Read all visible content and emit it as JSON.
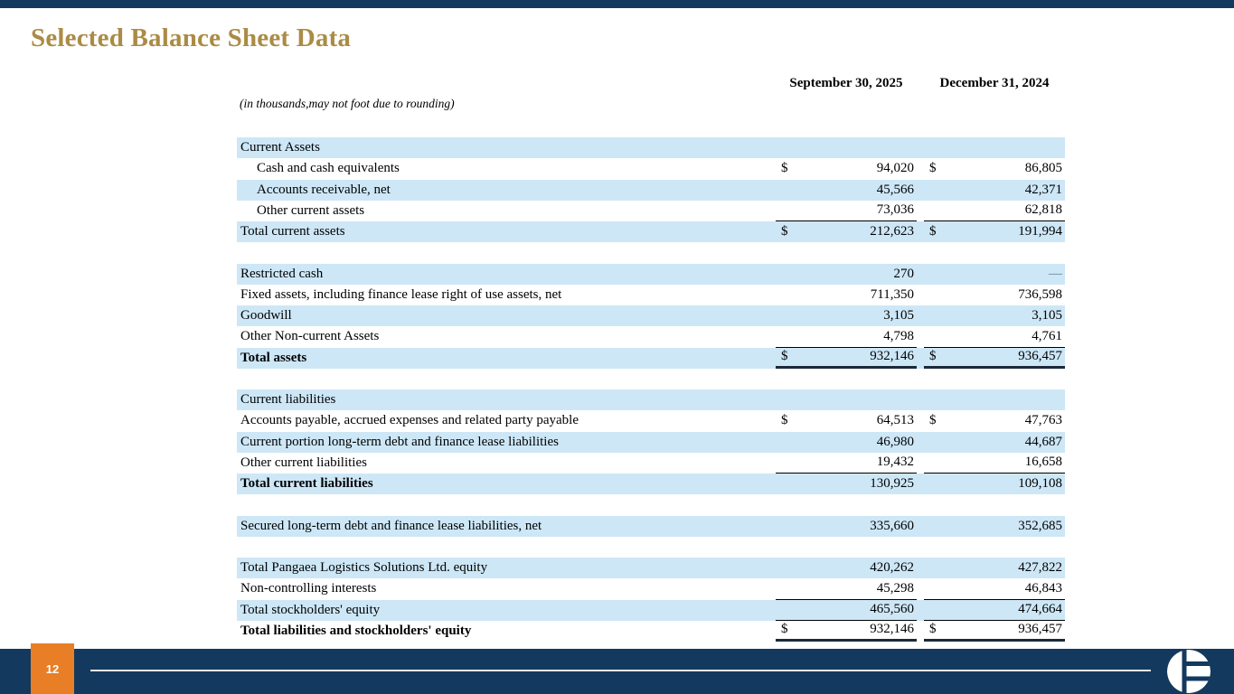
{
  "slide": {
    "title": "Selected Balance Sheet Data",
    "note": "(in thousands,may not foot due to rounding)",
    "page_number": "12"
  },
  "colors": {
    "navy": "#14395E",
    "row_blue": "#CDE7F7",
    "orange": "#E87E25",
    "gold_title": "#AB8B45"
  },
  "table": {
    "col_headers": [
      "September 30, 2025",
      "December 31, 2024"
    ],
    "rows": [
      {
        "label": "Current Assets",
        "bg": "blue"
      },
      {
        "label": "Cash and cash equivalents",
        "indent": 1,
        "bg": "white",
        "d1": "$",
        "v1": "94,020",
        "d2": "$",
        "v2": "86,805"
      },
      {
        "label": "Accounts receivable, net",
        "indent": 1,
        "bg": "blue",
        "v1": "45,566",
        "v2": "42,371"
      },
      {
        "label": "Other current assets",
        "indent": 1,
        "bg": "white",
        "v1": "73,036",
        "v2": "62,818",
        "u": "thin"
      },
      {
        "label": "Total current assets",
        "bg": "blue",
        "d1": "$",
        "v1": "212,623",
        "d2": "$",
        "v2": "191,994"
      },
      {
        "type": "gap"
      },
      {
        "label": "Restricted cash",
        "bg": "blue",
        "v1": "270",
        "v2": "—"
      },
      {
        "label": "Fixed assets, including finance lease right of use assets, net",
        "bg": "white",
        "v1": "711,350",
        "v2": "736,598"
      },
      {
        "label": "Goodwill",
        "bg": "blue",
        "v1": "3,105",
        "v2": "3,105"
      },
      {
        "label": "Other Non-current Assets",
        "bg": "white",
        "v1": "4,798",
        "v2": "4,761",
        "u": "thin"
      },
      {
        "label": "Total assets",
        "bold": true,
        "bg": "blue",
        "d1": "$",
        "v1": "932,146",
        "d2": "$",
        "v2": "936,457",
        "u": "thick"
      },
      {
        "type": "gap"
      },
      {
        "label": "Current liabilities",
        "bg": "blue"
      },
      {
        "label": "Accounts payable, accrued expenses and related party payable",
        "bg": "white",
        "d1": "$",
        "v1": "64,513",
        "d2": "$",
        "v2": "47,763"
      },
      {
        "label": "Current portion long-term debt and finance lease liabilities",
        "bg": "blue",
        "v1": "46,980",
        "v2": "44,687"
      },
      {
        "label": "Other current liabilities",
        "bg": "white",
        "v1": "19,432",
        "v2": "16,658",
        "u": "thin"
      },
      {
        "label": "Total current liabilities",
        "bold": true,
        "bg": "blue",
        "v1": "130,925",
        "v2": "109,108"
      },
      {
        "type": "gap"
      },
      {
        "label": "Secured long-term debt and finance lease liabilities, net",
        "bg": "blue",
        "v1": "335,660",
        "v2": "352,685"
      },
      {
        "type": "gap"
      },
      {
        "label": "Total Pangaea Logistics Solutions Ltd. equity",
        "bg": "blue",
        "v1": "420,262",
        "v2": "427,822"
      },
      {
        "label": "Non-controlling interests",
        "bg": "white",
        "v1": "45,298",
        "v2": "46,843",
        "u": "thin"
      },
      {
        "label": "Total stockholders' equity",
        "bg": "blue",
        "v1": "465,560",
        "v2": "474,664",
        "u": "thin"
      },
      {
        "label": "Total liabilities and stockholders' equity",
        "bold": true,
        "bg": "white",
        "d1": "$",
        "v1": "932,146",
        "d2": "$",
        "v2": "936,457",
        "u": "thick"
      }
    ]
  }
}
